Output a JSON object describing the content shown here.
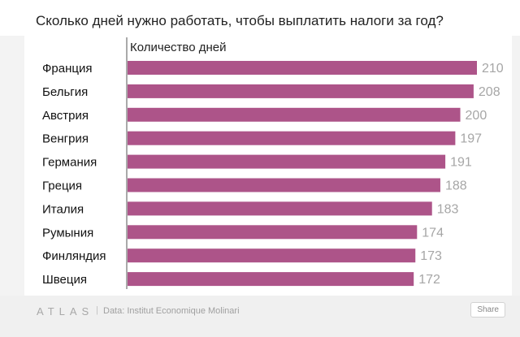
{
  "title": "Сколько дней нужно работать, чтобы выплатить налоги за год?",
  "footer": {
    "brand": "ATLAS",
    "separator": "|",
    "source": "Data: Institut Economique Molinari",
    "share_label": "Share"
  },
  "colors": {
    "bar": "#ad5489",
    "value_label": "#a6a6a6",
    "axis": "#555555"
  },
  "chart_data": {
    "type": "bar",
    "orientation": "horizontal",
    "title": "Сколько дней нужно работать, чтобы выплатить налоги за год?",
    "series_label": "Количество дней",
    "categories": [
      "Франция",
      "Бельгия",
      "Австрия",
      "Венгрия",
      "Германия",
      "Греция",
      "Италия",
      "Румыния",
      "Финляндия",
      "Швеция"
    ],
    "values": [
      210,
      208,
      200,
      197,
      191,
      188,
      183,
      174,
      173,
      172
    ],
    "xlim": [
      0,
      210
    ],
    "grid": false,
    "data_labels": true
  }
}
